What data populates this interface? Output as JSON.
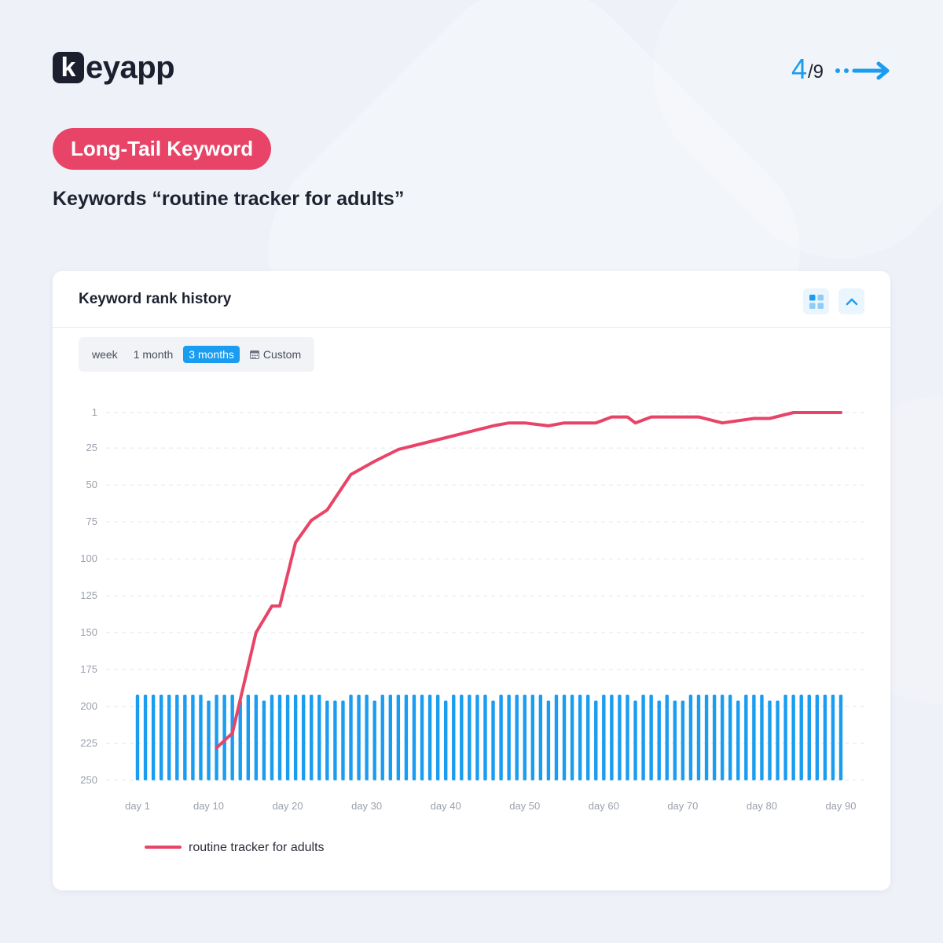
{
  "brand": {
    "logo_letter": "k",
    "logo_rest": "eyapp"
  },
  "pager": {
    "current": "4",
    "total": "/9"
  },
  "tag": "Long-Tail Keyword",
  "subtitle": "Keywords “routine tracker for adults”",
  "card": {
    "title": "Keyword rank history",
    "grid_icon": "grid-view-icon",
    "collapse_icon": "chevron-up-icon"
  },
  "range_options": [
    {
      "label": "week",
      "active": false
    },
    {
      "label": "1 month",
      "active": false
    },
    {
      "label": "3 months",
      "active": true
    },
    {
      "label": "Custom",
      "active": false,
      "icon": "calendar-icon"
    }
  ],
  "colors": {
    "line": "#e84467",
    "bars": "#1a9cf0",
    "tag": "#e84467",
    "accent": "#1a9cf0"
  },
  "chart_data": {
    "type": "line",
    "grid": true,
    "y_axis_inverted": true,
    "ylim": [
      1,
      250
    ],
    "y_ticks": [
      "1",
      "25",
      "50",
      "75",
      "100",
      "125",
      "150",
      "175",
      "200",
      "225",
      "250"
    ],
    "y_tick_values": [
      1,
      25,
      50,
      75,
      100,
      125,
      150,
      175,
      200,
      225,
      250
    ],
    "x_ticks": [
      "day 1",
      "day 10",
      "day 20",
      "day 30",
      "day 40",
      "day 50",
      "day 60",
      "day 70",
      "day 80",
      "day 90"
    ],
    "x_tick_values": [
      1,
      10,
      20,
      30,
      40,
      50,
      60,
      70,
      80,
      90
    ],
    "xlim": [
      1,
      90
    ],
    "legend_position": "bottom-left",
    "series": [
      {
        "name": "routine tracker for adults",
        "type": "line",
        "x": [
          11,
          13,
          16,
          18,
          19,
          21,
          23,
          25,
          28,
          31,
          34,
          37,
          40,
          43,
          46,
          48,
          50,
          53,
          55,
          59,
          61,
          63,
          64,
          66,
          72,
          75,
          79,
          81,
          84,
          90
        ],
        "y": [
          228,
          218,
          150,
          132,
          132,
          89,
          74,
          67,
          43,
          34,
          26,
          22,
          18,
          14,
          10,
          8,
          8,
          10,
          8,
          8,
          4,
          4,
          8,
          4,
          4,
          8,
          5,
          5,
          1,
          1
        ]
      },
      {
        "name": "",
        "type": "bar",
        "baseline": 250,
        "x": [
          1,
          2,
          3,
          4,
          5,
          6,
          7,
          8,
          9,
          10,
          11,
          12,
          13,
          14,
          15,
          16,
          17,
          18,
          19,
          20,
          21,
          22,
          23,
          24,
          25,
          26,
          27,
          28,
          29,
          30,
          31,
          32,
          33,
          34,
          35,
          36,
          37,
          38,
          39,
          40,
          41,
          42,
          43,
          44,
          45,
          46,
          47,
          48,
          49,
          50,
          51,
          52,
          53,
          54,
          55,
          56,
          57,
          58,
          59,
          60,
          61,
          62,
          63,
          64,
          65,
          66,
          67,
          68,
          69,
          70,
          71,
          72,
          73,
          74,
          75,
          76,
          77,
          78,
          79,
          80,
          81,
          82,
          83,
          84,
          85,
          86,
          87,
          88,
          89,
          90
        ],
        "y": [
          192,
          192,
          192,
          192,
          192,
          192,
          192,
          192,
          192,
          196,
          192,
          192,
          192,
          196,
          192,
          192,
          196,
          192,
          192,
          192,
          192,
          192,
          192,
          192,
          196,
          196,
          196,
          192,
          192,
          192,
          196,
          192,
          192,
          192,
          192,
          192,
          192,
          192,
          192,
          196,
          192,
          192,
          192,
          192,
          192,
          196,
          192,
          192,
          192,
          192,
          192,
          192,
          196,
          192,
          192,
          192,
          192,
          192,
          196,
          192,
          192,
          192,
          192,
          196,
          192,
          192,
          196,
          192,
          196,
          196,
          192,
          192,
          192,
          192,
          192,
          192,
          196,
          192,
          192,
          192,
          196,
          196,
          192,
          192,
          192,
          192,
          192,
          192,
          192,
          192
        ]
      }
    ]
  }
}
